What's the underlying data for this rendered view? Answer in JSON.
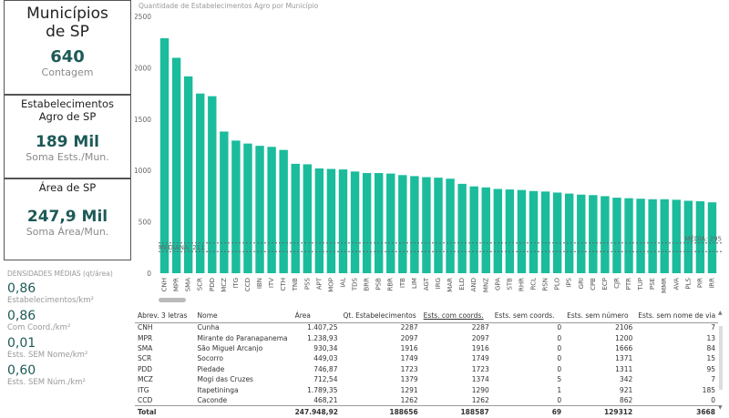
{
  "cards": {
    "municipios": {
      "title": "Municípios de SP",
      "value": "640",
      "subtitle": "Contagem"
    },
    "estabelecimentos": {
      "title": "Estabelecimentos Agro de SP",
      "value": "189 Mil",
      "subtitle": "Soma Ests./Mun."
    },
    "area": {
      "title": "Área de SP",
      "value": "247,9 Mil",
      "subtitle": "Soma Área/Mun."
    }
  },
  "densidades": {
    "title": "DENSIDADES MÉDIAS (qt/área)",
    "items": [
      {
        "value": "0,86",
        "label": "Estabelecimentos/km²"
      },
      {
        "value": "0,86",
        "label": "Com Coord./km²"
      },
      {
        "value": "0,01",
        "label": "Ests. SEM Nome/km²"
      },
      {
        "value": "0,60",
        "label": "Ests. SEM Núm./km²"
      }
    ]
  },
  "chart_data": {
    "type": "bar",
    "title": "Quantidade de Estabelecimentos Agro por Município",
    "categories": [
      "CNH",
      "MPR",
      "SMA",
      "SCR",
      "PDD",
      "MCZ",
      "ITG",
      "CCD",
      "IBN",
      "ITV",
      "CTH",
      "TNB",
      "PSS",
      "APT",
      "MOP",
      "IAL",
      "TDS",
      "BRR",
      "PSB",
      "RBR",
      "ITB",
      "LIM",
      "AGT",
      "IRG",
      "MAR",
      "ELD",
      "AND",
      "MNZ",
      "GPA",
      "STB",
      "RHR",
      "RCL",
      "RSN",
      "PLO",
      "IPS",
      "GRI",
      "CPB",
      "ECP",
      "CJR",
      "PTR",
      "TUP",
      "PSE",
      "MMR",
      "AVA",
      "PLS",
      "PIR",
      "IRR"
    ],
    "values": [
      2287,
      2097,
      1916,
      1749,
      1723,
      1379,
      1291,
      1262,
      1240,
      1230,
      1200,
      1065,
      1060,
      1020,
      1015,
      1010,
      990,
      975,
      975,
      970,
      955,
      945,
      935,
      930,
      920,
      870,
      845,
      835,
      820,
      815,
      810,
      800,
      795,
      785,
      775,
      765,
      760,
      750,
      735,
      730,
      725,
      720,
      720,
      715,
      705,
      700,
      690
    ],
    "ylim": [
      0,
      2500
    ],
    "yticks": [
      "0",
      "500",
      "1000",
      "1500",
      "2000",
      "2500"
    ],
    "reference_lines": [
      {
        "label": "MEDIANA: 211",
        "value": 211
      },
      {
        "label": "MÉDIA: 295",
        "value": 295
      }
    ],
    "bar_color": "#1abc9c",
    "grid": false
  },
  "table": {
    "headers": [
      "Abrev. 3 letras",
      "Nome",
      "Área",
      "Qt. Estabelecimentos",
      "Ests. com coords.",
      "Ests. sem coords.",
      "Ests. sem número",
      "Ests. sem nome de via"
    ],
    "rows": [
      [
        "CNH",
        "Cunha",
        "1.407,25",
        "2287",
        "2287",
        "0",
        "2106",
        "7"
      ],
      [
        "MPR",
        "Mirante do Paranapanema",
        "1.238,93",
        "2097",
        "2097",
        "0",
        "1200",
        "13"
      ],
      [
        "SMA",
        "São Miguel Arcanjo",
        "930,34",
        "1916",
        "1916",
        "0",
        "1666",
        "84"
      ],
      [
        "SCR",
        "Socorro",
        "449,03",
        "1749",
        "1749",
        "0",
        "1371",
        "15"
      ],
      [
        "PDD",
        "Piedade",
        "746,87",
        "1723",
        "1723",
        "0",
        "1311",
        "95"
      ],
      [
        "MCZ",
        "Mogi das Cruzes",
        "712,54",
        "1379",
        "1374",
        "5",
        "342",
        "7"
      ],
      [
        "ITG",
        "Itapetininga",
        "1.789,35",
        "1291",
        "1290",
        "1",
        "921",
        "185"
      ],
      [
        "CCD",
        "Caconde",
        "468,21",
        "1262",
        "1262",
        "0",
        "862",
        "0"
      ]
    ],
    "total": [
      "Total",
      "",
      "247.948,92",
      "188656",
      "188587",
      "69",
      "129312",
      "3668"
    ]
  }
}
